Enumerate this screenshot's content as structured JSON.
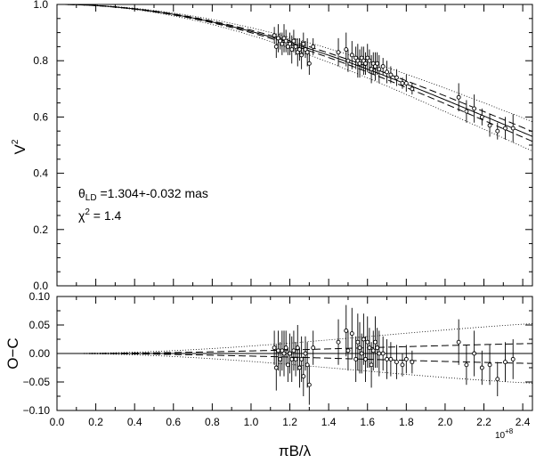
{
  "chart_data": [
    {
      "type": "scatter",
      "panel": "top",
      "ylabel_main": "V",
      "ylabel_sup": "2",
      "xlim": [
        0.0,
        2.45
      ],
      "ylim": [
        0.0,
        1.0
      ],
      "yticks": [
        "0.0",
        "0.2",
        "0.4",
        "0.6",
        "0.8",
        "1.0"
      ],
      "annotation_theta_symbol": "θ",
      "annotation_theta_sub": "LD",
      "annotation_theta_rest": " =1.304+-0.032 mas",
      "annotation_chi_symbol": "χ",
      "annotation_chi_sup": "2",
      "annotation_chi_rest": " = 1.4",
      "model": {
        "theta_mas": 1.304,
        "theta_err_mas": 0.032,
        "x_scale_exp": 8
      },
      "series": [
        {
          "x": [
            1.12,
            1.13,
            1.14,
            1.15,
            1.16,
            1.17,
            1.18,
            1.19,
            1.2,
            1.21,
            1.22,
            1.23,
            1.24,
            1.25,
            1.26,
            1.27,
            1.28,
            1.29,
            1.3,
            1.32,
            1.45,
            1.49,
            1.5,
            1.52,
            1.54,
            1.55,
            1.56,
            1.57,
            1.58,
            1.59,
            1.6,
            1.61,
            1.62,
            1.63,
            1.64,
            1.65,
            1.66,
            1.68,
            1.7,
            1.72,
            1.75,
            1.78,
            1.8,
            1.83,
            2.07,
            2.11,
            2.15,
            2.19,
            2.23,
            2.27,
            2.31,
            2.35
          ],
          "y": [
            0.89,
            0.85,
            0.88,
            0.87,
            0.86,
            0.88,
            0.87,
            0.85,
            0.86,
            0.84,
            0.87,
            0.85,
            0.83,
            0.84,
            0.82,
            0.86,
            0.84,
            0.83,
            0.79,
            0.85,
            0.83,
            0.84,
            0.8,
            0.82,
            0.81,
            0.8,
            0.79,
            0.81,
            0.8,
            0.79,
            0.81,
            0.8,
            0.77,
            0.79,
            0.78,
            0.79,
            0.77,
            0.78,
            0.76,
            0.75,
            0.74,
            0.72,
            0.72,
            0.7,
            0.67,
            0.62,
            0.63,
            0.6,
            0.57,
            0.55,
            0.56,
            0.56
          ],
          "err": [
            0.03,
            0.04,
            0.05,
            0.03,
            0.04,
            0.05,
            0.04,
            0.03,
            0.04,
            0.05,
            0.04,
            0.03,
            0.05,
            0.04,
            0.05,
            0.04,
            0.03,
            0.05,
            0.04,
            0.03,
            0.05,
            0.06,
            0.04,
            0.05,
            0.04,
            0.06,
            0.05,
            0.04,
            0.05,
            0.04,
            0.05,
            0.04,
            0.05,
            0.04,
            0.05,
            0.04,
            0.05,
            0.03,
            0.04,
            0.03,
            0.03,
            0.02,
            0.03,
            0.02,
            0.05,
            0.04,
            0.05,
            0.03,
            0.04,
            0.03,
            0.04,
            0.05
          ]
        }
      ]
    },
    {
      "type": "scatter",
      "panel": "bottom",
      "ylabel": "O−C",
      "xlabel": "πB/λ",
      "x_exponent_note": "10",
      "x_exponent_sup": "+8",
      "xlim": [
        0.0,
        2.45
      ],
      "ylim": [
        -0.1,
        0.1
      ],
      "xticks": [
        "0.0",
        "0.2",
        "0.4",
        "0.6",
        "0.8",
        "1.0",
        "1.2",
        "1.4",
        "1.6",
        "1.8",
        "2.0",
        "2.2",
        "2.4"
      ],
      "yticks": [
        "−0.10",
        "−0.05",
        "0.00",
        "0.05",
        "0.10"
      ],
      "series": [
        {
          "x": [
            1.12,
            1.13,
            1.14,
            1.15,
            1.16,
            1.17,
            1.18,
            1.19,
            1.2,
            1.21,
            1.22,
            1.23,
            1.24,
            1.25,
            1.26,
            1.27,
            1.28,
            1.29,
            1.3,
            1.32,
            1.45,
            1.49,
            1.5,
            1.52,
            1.54,
            1.55,
            1.56,
            1.57,
            1.58,
            1.59,
            1.6,
            1.61,
            1.62,
            1.63,
            1.64,
            1.65,
            1.66,
            1.68,
            1.7,
            1.72,
            1.75,
            1.78,
            1.8,
            1.83,
            2.07,
            2.11,
            2.15,
            2.19,
            2.23,
            2.27,
            2.31,
            2.35
          ],
          "y": [
            0.01,
            -0.025,
            0.005,
            -0.01,
            0.005,
            0.0,
            0.01,
            -0.02,
            0.0,
            -0.01,
            0.005,
            -0.01,
            0.01,
            -0.025,
            -0.01,
            -0.04,
            0.0,
            -0.02,
            -0.055,
            0.01,
            0.02,
            0.04,
            0.005,
            0.035,
            -0.01,
            0.02,
            0.01,
            0.0,
            0.025,
            -0.01,
            0.02,
            0.01,
            -0.02,
            0.005,
            0.02,
            0.01,
            0.0,
            0.0,
            -0.01,
            -0.01,
            -0.015,
            -0.02,
            -0.01,
            -0.015,
            0.02,
            -0.02,
            0.0,
            -0.025,
            -0.02,
            -0.045,
            -0.015,
            -0.01
          ],
          "err": [
            0.03,
            0.04,
            0.035,
            0.03,
            0.035,
            0.04,
            0.03,
            0.03,
            0.035,
            0.04,
            0.035,
            0.03,
            0.04,
            0.035,
            0.04,
            0.035,
            0.03,
            0.04,
            0.035,
            0.03,
            0.04,
            0.045,
            0.035,
            0.045,
            0.04,
            0.05,
            0.045,
            0.035,
            0.045,
            0.04,
            0.045,
            0.035,
            0.04,
            0.035,
            0.045,
            0.035,
            0.04,
            0.03,
            0.035,
            0.03,
            0.03,
            0.02,
            0.025,
            0.02,
            0.04,
            0.035,
            0.04,
            0.03,
            0.035,
            0.03,
            0.035,
            0.035
          ]
        }
      ]
    }
  ]
}
